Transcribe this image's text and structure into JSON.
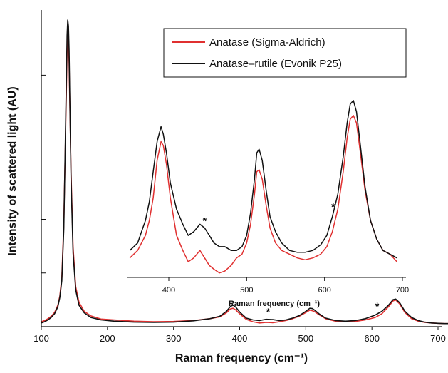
{
  "chart_data": [
    {
      "type": "line",
      "role": "main",
      "xlabel": "Raman frequency (cm⁻¹)",
      "ylabel": "Intensity of scattered light (AU)",
      "xlim": [
        100,
        720
      ],
      "ylim": [
        0,
        100
      ],
      "xticks": [
        100,
        200,
        300,
        400,
        500,
        600,
        700
      ],
      "yticks": [
        0,
        17.5,
        35,
        82
      ],
      "y_tick_labels_shown": false,
      "grid": false,
      "legend_position": "top-right",
      "series": [
        {
          "name": "Anatase (Sigma-Aldrich)",
          "color": "#e03030",
          "x": [
            100,
            105,
            110,
            115,
            120,
            125,
            128,
            131,
            134,
            136,
            138,
            139,
            140,
            141,
            142,
            143,
            145,
            148,
            152,
            157,
            165,
            175,
            190,
            210,
            240,
            270,
            300,
            330,
            355,
            370,
            380,
            386,
            390,
            394,
            400,
            410,
            420,
            430,
            440,
            450,
            460,
            470,
            480,
            490,
            500,
            506,
            510,
            514,
            520,
            530,
            545,
            560,
            575,
            590,
            605,
            615,
            625,
            632,
            636,
            642,
            650,
            660,
            670,
            680,
            690,
            700,
            710,
            720
          ],
          "values": [
            1.6,
            2.0,
            2.6,
            3.4,
            4.6,
            7.0,
            10.0,
            16.0,
            34.0,
            55.0,
            78.0,
            90.0,
            96.0,
            94.0,
            86.0,
            74.0,
            50.0,
            26.0,
            13.0,
            8.0,
            5.0,
            3.5,
            2.5,
            2.2,
            1.8,
            1.6,
            1.7,
            2.0,
            2.6,
            3.2,
            4.5,
            5.8,
            6.0,
            5.5,
            4.2,
            2.4,
            1.6,
            1.2,
            1.4,
            1.3,
            1.6,
            2.0,
            2.6,
            3.4,
            4.6,
            5.4,
            5.2,
            4.8,
            3.9,
            2.6,
            1.8,
            1.6,
            1.7,
            2.2,
            3.0,
            4.2,
            6.5,
            8.4,
            8.7,
            7.4,
            4.6,
            2.6,
            1.8,
            1.4,
            1.2,
            1.1,
            1.0,
            1.0
          ]
        },
        {
          "name": "Anatase–rutile (Evonik P25)",
          "color": "#111111",
          "x": [
            100,
            105,
            110,
            115,
            120,
            125,
            128,
            131,
            134,
            136,
            138,
            139,
            140,
            141,
            142,
            143,
            145,
            148,
            152,
            157,
            165,
            175,
            190,
            210,
            240,
            270,
            300,
            330,
            355,
            370,
            380,
            386,
            390,
            394,
            400,
            410,
            420,
            430,
            440,
            450,
            460,
            470,
            480,
            490,
            500,
            506,
            510,
            514,
            520,
            530,
            545,
            560,
            575,
            590,
            605,
            615,
            625,
            632,
            636,
            642,
            650,
            660,
            670,
            680,
            690,
            700,
            710,
            720
          ],
          "values": [
            1.2,
            1.6,
            2.2,
            3.0,
            4.2,
            6.5,
            9.5,
            15.0,
            32.0,
            56.0,
            82.0,
            95.0,
            100.0,
            98.0,
            90.0,
            76.0,
            48.0,
            24.0,
            12.0,
            7.0,
            4.5,
            3.0,
            2.2,
            1.8,
            1.5,
            1.4,
            1.5,
            1.9,
            2.6,
            3.4,
            5.0,
            6.6,
            7.0,
            6.4,
            4.8,
            2.8,
            2.2,
            2.0,
            2.4,
            2.3,
            2.0,
            2.2,
            2.8,
            3.6,
            5.0,
            6.0,
            5.9,
            5.3,
            4.2,
            2.8,
            2.0,
            1.8,
            2.0,
            2.6,
            3.8,
            5.0,
            7.0,
            8.8,
            9.0,
            7.8,
            5.0,
            3.0,
            2.0,
            1.5,
            1.2,
            1.1,
            1.0,
            1.0
          ]
        }
      ],
      "annotations": [
        {
          "text": "*",
          "x": 443
        },
        {
          "text": "*",
          "x": 608
        }
      ]
    },
    {
      "type": "line",
      "role": "inset",
      "xlabel": "Raman frequency (cm⁻¹)",
      "xlim": [
        350,
        700
      ],
      "ylim": [
        0,
        100
      ],
      "xticks": [
        400,
        500,
        600,
        700
      ],
      "grid": false,
      "series": [
        {
          "name": "Anatase (Sigma-Aldrich)",
          "color": "#e03030",
          "x": [
            350,
            355,
            360,
            365,
            370,
            375,
            380,
            385,
            390,
            393,
            397,
            402,
            410,
            418,
            425,
            432,
            440,
            446,
            452,
            458,
            465,
            472,
            480,
            487,
            494,
            500,
            505,
            510,
            513,
            516,
            520,
            525,
            530,
            537,
            545,
            555,
            565,
            575,
            585,
            595,
            603,
            610,
            617,
            624,
            629,
            633,
            637,
            641,
            646,
            652,
            659,
            667,
            675,
            684,
            693
          ],
          "values": [
            10,
            12,
            14,
            18,
            22,
            30,
            42,
            62,
            72,
            70,
            60,
            42,
            22,
            14,
            8,
            10,
            14,
            10,
            6,
            4,
            2,
            3,
            6,
            10,
            12,
            18,
            28,
            44,
            56,
            57,
            52,
            38,
            26,
            18,
            14,
            12,
            10,
            9,
            10,
            12,
            16,
            24,
            36,
            56,
            74,
            84,
            86,
            82,
            66,
            46,
            30,
            20,
            14,
            12,
            8
          ]
        },
        {
          "name": "Anatase–rutile (Evonik P25)",
          "color": "#111111",
          "x": [
            350,
            355,
            360,
            365,
            370,
            375,
            380,
            385,
            390,
            393,
            397,
            402,
            410,
            418,
            425,
            432,
            440,
            446,
            452,
            458,
            465,
            472,
            480,
            487,
            494,
            500,
            505,
            510,
            513,
            516,
            520,
            525,
            530,
            537,
            545,
            555,
            565,
            575,
            585,
            595,
            603,
            610,
            617,
            624,
            629,
            633,
            637,
            641,
            646,
            652,
            659,
            667,
            675,
            684,
            693
          ],
          "values": [
            14,
            16,
            18,
            24,
            30,
            40,
            56,
            72,
            80,
            76,
            66,
            50,
            36,
            28,
            22,
            24,
            28,
            26,
            22,
            18,
            16,
            16,
            14,
            14,
            16,
            22,
            34,
            52,
            66,
            68,
            62,
            46,
            32,
            24,
            18,
            14,
            13,
            13,
            14,
            17,
            22,
            32,
            44,
            64,
            82,
            92,
            94,
            88,
            70,
            48,
            30,
            20,
            14,
            12,
            10
          ]
        }
      ],
      "annotations": [
        {
          "text": "*",
          "x": 446
        },
        {
          "text": "*",
          "x": 611
        }
      ]
    }
  ]
}
